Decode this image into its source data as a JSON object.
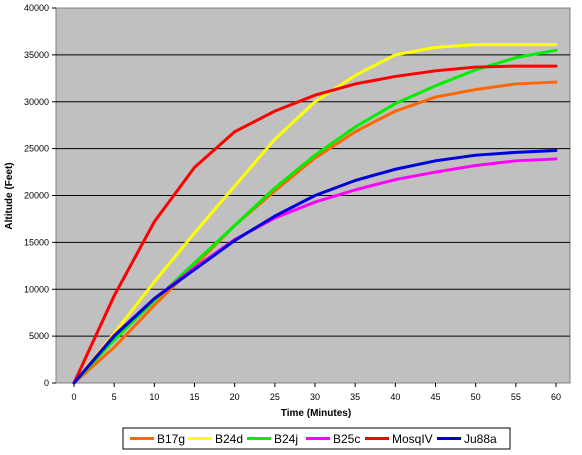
{
  "chart_data": {
    "type": "line",
    "title": "",
    "xlabel": "Time (Minutes)",
    "ylabel": "Altitude (Feet)",
    "x": [
      0,
      5,
      10,
      15,
      20,
      25,
      30,
      35,
      40,
      45,
      50,
      55,
      60
    ],
    "xlim": [
      0,
      60
    ],
    "ylim": [
      0,
      40000
    ],
    "xticks": [
      "0",
      "5",
      "10",
      "15",
      "20",
      "25",
      "30",
      "35",
      "40",
      "45",
      "50",
      "55",
      "60"
    ],
    "yticks": [
      "0",
      "5000",
      "10000",
      "15000",
      "20000",
      "25000",
      "30000",
      "35000",
      "40000"
    ],
    "grid": "horizontal",
    "legend_position": "bottom",
    "series": [
      {
        "name": "B17g",
        "color": "#ff6600",
        "values": [
          0,
          3800,
          8300,
          12500,
          16800,
          20500,
          24000,
          26800,
          29000,
          30500,
          31300,
          31900,
          32100
        ]
      },
      {
        "name": "B24d",
        "color": "#ffff00",
        "values": [
          0,
          5300,
          10800,
          16000,
          21000,
          26000,
          30000,
          32800,
          35000,
          35800,
          36100,
          36100,
          36100
        ]
      },
      {
        "name": "B24j",
        "color": "#00ee00",
        "values": [
          0,
          4600,
          8800,
          12800,
          16800,
          20800,
          24300,
          27300,
          29800,
          31700,
          33400,
          34700,
          35500
        ]
      },
      {
        "name": "B25c",
        "color": "#ff00ff",
        "values": [
          0,
          5100,
          9000,
          12300,
          15300,
          17600,
          19300,
          20600,
          21700,
          22500,
          23200,
          23700,
          23900
        ]
      },
      {
        "name": "MosqIV",
        "color": "#ff0000",
        "values": [
          0,
          9300,
          17200,
          23000,
          26800,
          29000,
          30700,
          31900,
          32700,
          33300,
          33700,
          33800,
          33800
        ]
      },
      {
        "name": "Ju88a",
        "color": "#0000dd",
        "values": [
          0,
          5000,
          9000,
          12100,
          15200,
          17800,
          20000,
          21600,
          22800,
          23700,
          24300,
          24600,
          24800
        ]
      }
    ]
  }
}
